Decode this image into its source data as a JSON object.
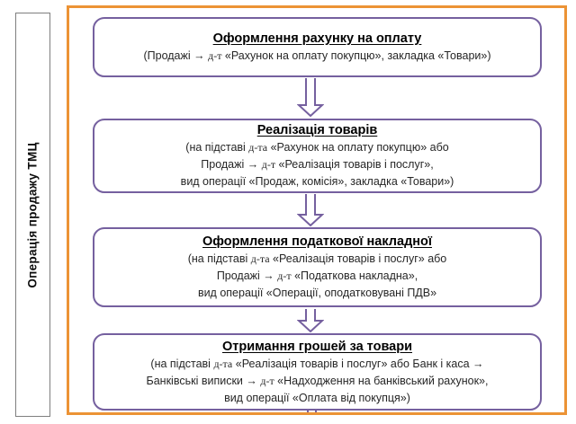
{
  "sidebar": {
    "label": "Операція продажу ТМЦ"
  },
  "colors": {
    "purple": "#75609F",
    "orange": "#EC9335",
    "text": "#262626"
  },
  "flow": {
    "boxes": [
      {
        "title": "Оформлення рахунку на оплату",
        "lines": [
          "(Продажі → д-т «Рахунок на оплату покупцю», закладка «Товари»)"
        ]
      },
      {
        "title": "Реалізація товарів",
        "lines": [
          "(на підставі д-та «Рахунок на оплату покупцю» або",
          "Продажі → д-т «Реалізація товарів і послуг»,",
          "вид операції «Продаж, комісія», закладка «Товари»)"
        ]
      },
      {
        "title": "Оформлення податкової накладної",
        "lines": [
          "(на підставі д-та «Реалізація товарів і послуг» або",
          "Продажі → д-т «Податкова накладна»,",
          "вид операції «Операції, оподатковувані ПДВ»"
        ]
      },
      {
        "title": "Отримання грошей за товари",
        "lines": [
          "(на підставі д-та «Реалізація товарів і послуг» або Банк і каса →",
          "Банківські виписки → д-т «Надходження на банківський рахунок»,",
          "вид операції «Оплата від покупця»)"
        ]
      }
    ]
  }
}
